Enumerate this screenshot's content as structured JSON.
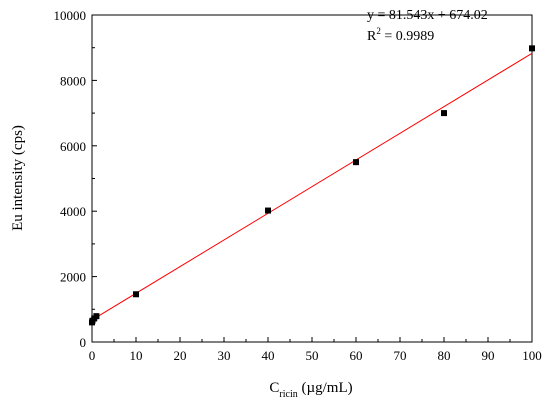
{
  "chart_data": {
    "type": "scatter",
    "title": "",
    "xlabel": {
      "main": "C",
      "sub": "ricin",
      "unit": " (µg/mL)"
    },
    "ylabel": "Eu intensity (cps)",
    "xlim": [
      0,
      100
    ],
    "ylim": [
      0,
      10000
    ],
    "xticks": [
      0,
      10,
      20,
      30,
      40,
      50,
      60,
      70,
      80,
      90,
      100
    ],
    "yticks": [
      0,
      2000,
      4000,
      6000,
      8000,
      10000
    ],
    "series": [
      {
        "marker": "square",
        "color": "#000000",
        "x": [
          0,
          0.1,
          0.5,
          1,
          10,
          40,
          60,
          80,
          100
        ],
        "y": [
          600,
          650,
          720,
          790,
          1460,
          4020,
          5500,
          7000,
          8980
        ]
      }
    ],
    "fit": {
      "slope": 81.543,
      "intercept": 674.02,
      "color": "#ff0000",
      "equation": "y = 81.543x + 674.02",
      "r2_label": "R",
      "r2_sup": "2",
      "r2_value": " = 0.9989"
    }
  }
}
